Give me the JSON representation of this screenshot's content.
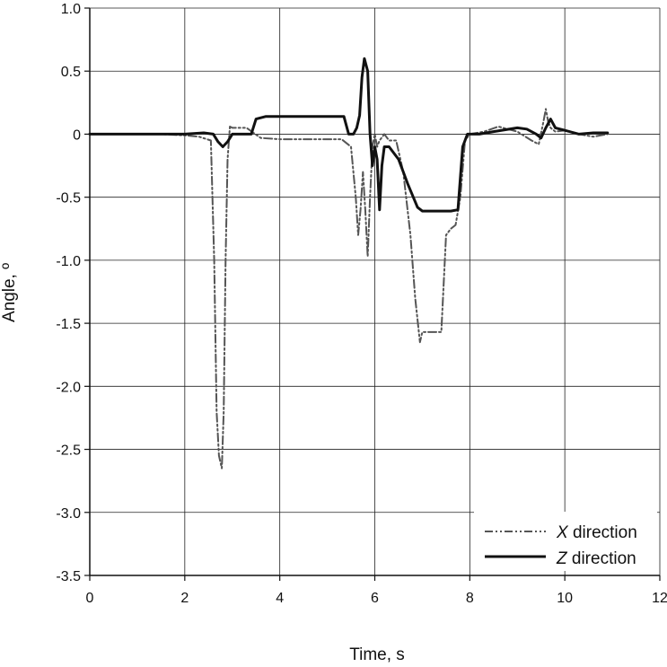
{
  "chart_data": {
    "type": "line",
    "xlabel": "Time, s",
    "ylabel": "Angle, º",
    "xlim": [
      0,
      12
    ],
    "ylim": [
      -3.5,
      1.0
    ],
    "x_ticks": [
      0,
      2,
      4,
      6,
      8,
      10,
      12
    ],
    "y_ticks": [
      1.0,
      0.5,
      0,
      -0.5,
      -1.0,
      -1.5,
      -2.0,
      -2.5,
      -3.0,
      -3.5
    ],
    "x_tick_labels": [
      "0",
      "2",
      "4",
      "6",
      "8",
      "10",
      "12"
    ],
    "y_tick_labels": [
      "1.0",
      "0.5",
      "0",
      "-0.5",
      "-1.0",
      "-1.5",
      "-2.0",
      "-2.5",
      "-3.0",
      "-3.5"
    ],
    "grid": true,
    "legend_position": "bottom-right",
    "series": [
      {
        "name": "X direction",
        "legend_prefix": "X",
        "legend_suffix": " direction",
        "color": "#555555",
        "style": "dash-dot",
        "x": [
          0,
          0.5,
          1.0,
          1.5,
          2.0,
          2.3,
          2.55,
          2.62,
          2.67,
          2.72,
          2.78,
          2.82,
          2.86,
          2.9,
          2.95,
          3.0,
          3.3,
          3.6,
          4.0,
          4.5,
          5.0,
          5.3,
          5.5,
          5.6,
          5.65,
          5.7,
          5.75,
          5.8,
          5.85,
          5.9,
          5.95,
          6.0,
          6.05,
          6.1,
          6.2,
          6.3,
          6.45,
          6.6,
          6.75,
          6.85,
          6.95,
          7.0,
          7.1,
          7.4,
          7.5,
          7.6,
          7.7,
          7.8,
          7.9,
          8.0,
          8.3,
          8.6,
          9.0,
          9.3,
          9.45,
          9.55,
          9.6,
          9.65,
          9.7,
          9.8,
          10.0,
          10.3,
          10.6,
          10.9
        ],
        "y": [
          0.0,
          0.0,
          0.0,
          0.0,
          -0.01,
          -0.02,
          -0.05,
          -1.0,
          -2.2,
          -2.55,
          -2.65,
          -2.2,
          -1.0,
          -0.2,
          0.06,
          0.05,
          0.05,
          -0.03,
          -0.04,
          -0.04,
          -0.04,
          -0.04,
          -0.1,
          -0.5,
          -0.8,
          -0.6,
          -0.3,
          -0.6,
          -0.97,
          -0.5,
          -0.1,
          0.0,
          -0.1,
          -0.05,
          0.0,
          -0.05,
          -0.05,
          -0.3,
          -0.8,
          -1.3,
          -1.65,
          -1.57,
          -1.57,
          -1.57,
          -0.8,
          -0.75,
          -0.72,
          -0.5,
          -0.05,
          0.0,
          0.02,
          0.06,
          0.02,
          -0.05,
          -0.08,
          0.1,
          0.2,
          0.1,
          0.05,
          0.02,
          0.03,
          0.0,
          -0.02,
          0.0
        ]
      },
      {
        "name": "Z direction",
        "legend_prefix": "Z",
        "legend_suffix": " direction",
        "color": "#111111",
        "style": "solid",
        "x": [
          0,
          0.5,
          1.0,
          1.5,
          2.0,
          2.4,
          2.6,
          2.7,
          2.8,
          2.9,
          3.0,
          3.2,
          3.4,
          3.5,
          3.7,
          4.0,
          4.5,
          5.0,
          5.35,
          5.45,
          5.55,
          5.62,
          5.68,
          5.73,
          5.78,
          5.85,
          5.9,
          5.95,
          6.0,
          6.05,
          6.1,
          6.15,
          6.2,
          6.3,
          6.5,
          6.7,
          6.9,
          7.0,
          7.3,
          7.6,
          7.75,
          7.85,
          7.95,
          8.2,
          8.5,
          9.0,
          9.2,
          9.4,
          9.5,
          9.6,
          9.7,
          9.8,
          10.0,
          10.3,
          10.6,
          10.9
        ],
        "y": [
          0.0,
          0.0,
          0.0,
          0.0,
          0.0,
          0.01,
          0.0,
          -0.06,
          -0.1,
          -0.06,
          0.0,
          0.0,
          0.0,
          0.12,
          0.14,
          0.14,
          0.14,
          0.14,
          0.14,
          0.0,
          0.0,
          0.05,
          0.15,
          0.45,
          0.6,
          0.5,
          0.0,
          -0.25,
          -0.1,
          -0.2,
          -0.6,
          -0.25,
          -0.1,
          -0.1,
          -0.2,
          -0.4,
          -0.58,
          -0.61,
          -0.61,
          -0.61,
          -0.6,
          -0.1,
          0.0,
          0.0,
          0.02,
          0.05,
          0.04,
          0.0,
          -0.03,
          0.05,
          0.12,
          0.05,
          0.03,
          0.0,
          0.01,
          0.01
        ]
      }
    ]
  }
}
